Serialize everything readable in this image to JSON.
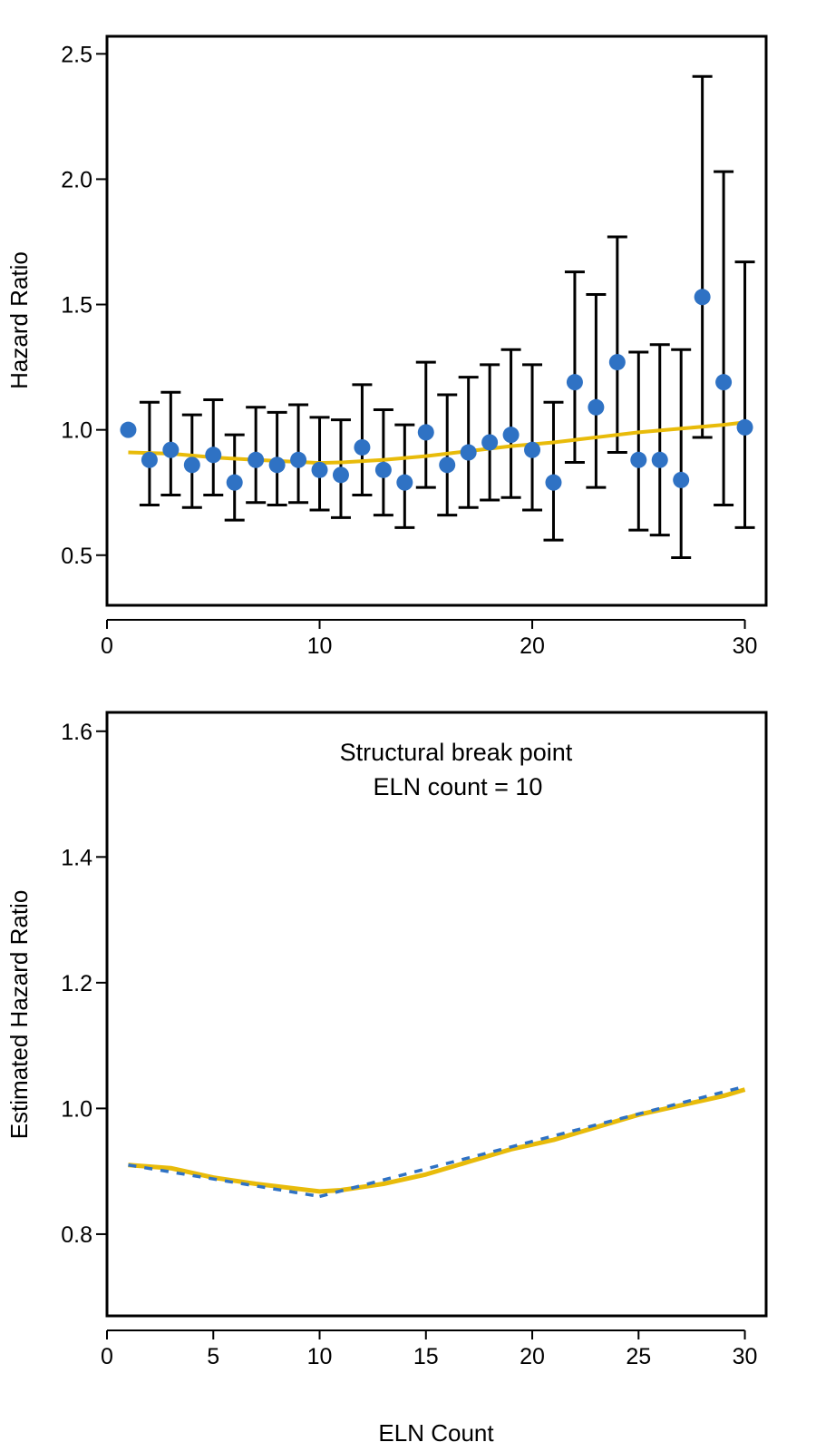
{
  "colors": {
    "point": "#2f72c4",
    "trend": "#e8bb0a",
    "dashed": "#2f72c4",
    "error_bar": "#000000",
    "frame": "#000000"
  },
  "chart_data": [
    {
      "type": "scatter",
      "ylabel": "Hazard Ratio",
      "xlabel": "",
      "xlim": [
        0,
        31
      ],
      "ylim": [
        0.3,
        2.57
      ],
      "xticks": [
        0,
        10,
        20,
        30
      ],
      "yticks": [
        0.5,
        1.0,
        1.5,
        2.0,
        2.5
      ],
      "xtick_labels": [
        "0",
        "10",
        "20",
        "30"
      ],
      "ytick_labels": [
        "0.5",
        "1.0",
        "1.5",
        "2.0",
        "2.5"
      ],
      "series": [
        {
          "kind": "points_with_error_bars",
          "x": [
            1,
            2,
            3,
            4,
            5,
            6,
            7,
            8,
            9,
            10,
            11,
            12,
            13,
            14,
            15,
            16,
            17,
            18,
            19,
            20,
            21,
            22,
            23,
            24,
            25,
            26,
            27,
            28,
            29,
            30
          ],
          "y": [
            1.0,
            0.88,
            0.92,
            0.86,
            0.9,
            0.79,
            0.88,
            0.86,
            0.88,
            0.84,
            0.82,
            0.93,
            0.84,
            0.79,
            0.99,
            0.86,
            0.91,
            0.95,
            0.98,
            0.92,
            0.79,
            1.19,
            1.09,
            1.27,
            0.88,
            0.88,
            0.8,
            1.53,
            1.19,
            1.01
          ],
          "lower": [
            null,
            0.7,
            0.74,
            0.69,
            0.74,
            0.64,
            0.71,
            0.7,
            0.71,
            0.68,
            0.65,
            0.74,
            0.66,
            0.61,
            0.77,
            0.66,
            0.69,
            0.72,
            0.73,
            0.68,
            0.56,
            0.87,
            0.77,
            0.91,
            0.6,
            0.58,
            0.49,
            0.97,
            0.7,
            0.61
          ],
          "upper": [
            null,
            1.11,
            1.15,
            1.06,
            1.12,
            0.98,
            1.09,
            1.07,
            1.1,
            1.05,
            1.04,
            1.18,
            1.08,
            1.02,
            1.27,
            1.14,
            1.21,
            1.26,
            1.32,
            1.26,
            1.11,
            1.63,
            1.54,
            1.77,
            1.31,
            1.34,
            1.32,
            2.41,
            2.03,
            1.67
          ]
        },
        {
          "kind": "smooth_line",
          "x": [
            1,
            3,
            5,
            7,
            9,
            10,
            11,
            13,
            15,
            17,
            19,
            21,
            23,
            25,
            27,
            29,
            30
          ],
          "y": [
            0.91,
            0.905,
            0.89,
            0.88,
            0.872,
            0.868,
            0.87,
            0.88,
            0.895,
            0.915,
            0.935,
            0.95,
            0.97,
            0.99,
            1.005,
            1.02,
            1.03
          ]
        }
      ]
    },
    {
      "type": "line",
      "ylabel": "Estimated Hazard Ratio",
      "xlabel": "ELN Count",
      "xlim": [
        0,
        31
      ],
      "ylim": [
        0.67,
        1.63
      ],
      "xticks": [
        0,
        5,
        10,
        15,
        20,
        25,
        30
      ],
      "yticks": [
        0.8,
        1.0,
        1.2,
        1.4,
        1.6
      ],
      "xtick_labels": [
        "0",
        "5",
        "10",
        "15",
        "20",
        "25",
        "30"
      ],
      "ytick_labels": [
        "0.8",
        "1.0",
        "1.2",
        "1.4",
        "1.6"
      ],
      "annotation": [
        "Structural break point",
        "ELN count = 10"
      ],
      "series": [
        {
          "kind": "solid",
          "x": [
            1,
            3,
            5,
            7,
            9,
            10,
            11,
            13,
            15,
            17,
            19,
            21,
            23,
            25,
            27,
            29,
            30
          ],
          "y": [
            0.91,
            0.905,
            0.89,
            0.88,
            0.872,
            0.868,
            0.87,
            0.88,
            0.895,
            0.915,
            0.935,
            0.95,
            0.97,
            0.99,
            1.005,
            1.02,
            1.03
          ]
        },
        {
          "kind": "dashed",
          "segments": [
            {
              "x": [
                1,
                10
              ],
              "y": [
                0.91,
                0.86
              ]
            },
            {
              "x": [
                10,
                30
              ],
              "y": [
                0.86,
                1.035
              ]
            }
          ]
        }
      ]
    }
  ]
}
